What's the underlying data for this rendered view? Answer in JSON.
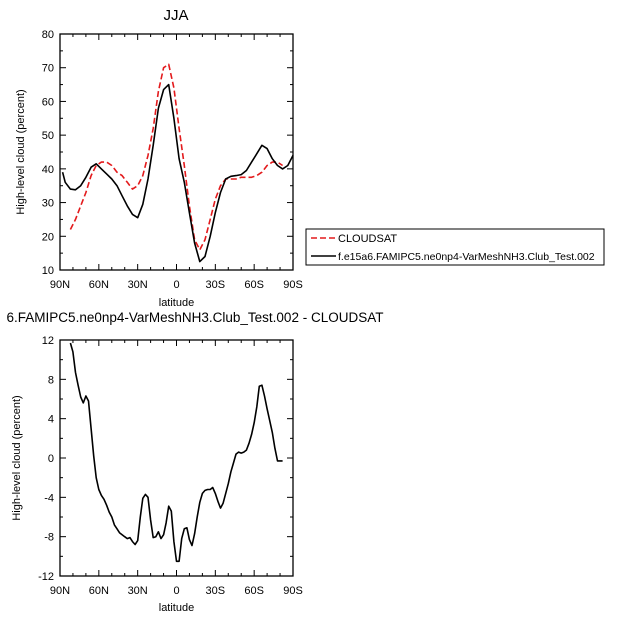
{
  "chart_data": [
    {
      "type": "line",
      "title": "JJA",
      "xlabel": "latitude",
      "ylabel": "High-level cloud (percent)",
      "x_direction": "90N to 90S",
      "xlim": [
        90,
        -90
      ],
      "ylim": [
        10,
        80
      ],
      "xticks": [
        90,
        60,
        30,
        0,
        -30,
        -60,
        -90
      ],
      "xtick_labels": [
        "90N",
        "60N",
        "30N",
        "0",
        "30S",
        "60S",
        "90S"
      ],
      "yticks": [
        10,
        20,
        30,
        40,
        50,
        60,
        70,
        80
      ],
      "ytick_labels": [
        "10",
        "20",
        "30",
        "40",
        "50",
        "60",
        "70",
        "80"
      ],
      "grid": false,
      "legend_placement": "outside-right",
      "series": [
        {
          "name": "CLOUDSAT",
          "color": "#e31a1c",
          "dash": "dashed",
          "x": [
            82,
            78,
            74,
            70,
            66,
            62,
            58,
            54,
            50,
            46,
            42,
            38,
            34,
            30,
            26,
            22,
            18,
            14,
            10,
            6,
            2,
            -2,
            -6,
            -10,
            -14,
            -18,
            -22,
            -26,
            -30,
            -34,
            -38,
            -42,
            -46,
            -50,
            -54,
            -58,
            -62,
            -66,
            -70,
            -74,
            -78,
            -82
          ],
          "y": [
            22,
            25,
            29,
            33,
            38,
            41,
            42,
            42,
            41,
            39,
            38,
            36,
            34,
            35,
            38,
            44,
            52,
            63,
            70,
            71,
            64,
            52,
            41,
            29,
            19,
            16,
            19,
            25,
            31,
            35,
            37,
            37,
            37,
            37.5,
            37.5,
            37.5,
            38,
            39,
            41,
            42,
            42,
            41
          ]
        },
        {
          "name": "f.e15a6.FAMIPC5.ne0np4-VarMeshNH3.Club_Test.002",
          "color": "#000000",
          "dash": "solid",
          "x": [
            88,
            86,
            82,
            78,
            74,
            70,
            66,
            62,
            58,
            54,
            50,
            46,
            42,
            38,
            34,
            30,
            26,
            22,
            18,
            14,
            10,
            6,
            2,
            -2,
            -6,
            -10,
            -14,
            -18,
            -22,
            -26,
            -30,
            -34,
            -38,
            -42,
            -46,
            -50,
            -54,
            -58,
            -62,
            -66,
            -70,
            -74,
            -78,
            -82,
            -86,
            -90
          ],
          "y": [
            39,
            36,
            34,
            33.8,
            35,
            37.5,
            40.5,
            41.5,
            40,
            38.5,
            37,
            35,
            32,
            29,
            26.5,
            25.5,
            29.5,
            37,
            47,
            58,
            63.5,
            65,
            55,
            43,
            36,
            27,
            18,
            12.5,
            14,
            20,
            27,
            33,
            37,
            37.8,
            38,
            38.3,
            39.5,
            42,
            44.5,
            47,
            46,
            43,
            41,
            40,
            41,
            44
          ]
        }
      ]
    },
    {
      "type": "line",
      "title": "6.FAMIPC5.ne0np4-VarMeshNH3.Club_Test.002 - CLOUDSAT",
      "xlabel": "latitude",
      "ylabel": "High-level cloud (percent)",
      "x_direction": "90N to 90S",
      "xlim": [
        90,
        -90
      ],
      "ylim": [
        -12,
        12
      ],
      "xticks": [
        90,
        60,
        30,
        0,
        -30,
        -60,
        -90
      ],
      "xtick_labels": [
        "90N",
        "60N",
        "30N",
        "0",
        "30S",
        "60S",
        "90S"
      ],
      "yticks": [
        -12,
        -8,
        -4,
        0,
        4,
        8,
        12
      ],
      "ytick_labels": [
        "-12",
        "-8",
        "-4",
        "0",
        "4",
        "8",
        "12"
      ],
      "grid": false,
      "series": [
        {
          "color": "#000000",
          "dash": "solid",
          "x": [
            82,
            80,
            78,
            76,
            74,
            72,
            70,
            68,
            66,
            64,
            62,
            60,
            58,
            56,
            54,
            52,
            50,
            48,
            46,
            44,
            42,
            40,
            38,
            36,
            34,
            32,
            30,
            28,
            26,
            24,
            22,
            20,
            18,
            16,
            14,
            12,
            10,
            8,
            6,
            4,
            2,
            0,
            -2,
            -4,
            -6,
            -8,
            -10,
            -12,
            -14,
            -16,
            -18,
            -20,
            -22,
            -24,
            -26,
            -28,
            -30,
            -32,
            -34,
            -36,
            -38,
            -40,
            -42,
            -44,
            -46,
            -48,
            -50,
            -52,
            -54,
            -56,
            -58,
            -60,
            -62,
            -64,
            -66,
            -68,
            -70,
            -72,
            -74,
            -76,
            -78,
            -80,
            -82
          ],
          "y": [
            11.7,
            10.8,
            8.7,
            7.4,
            6.2,
            5.6,
            6.3,
            5.8,
            3.0,
            0.2,
            -2.0,
            -3.2,
            -3.8,
            -4.2,
            -4.8,
            -5.5,
            -6.0,
            -6.8,
            -7.2,
            -7.6,
            -7.8,
            -8.0,
            -8.2,
            -8.1,
            -8.5,
            -8.8,
            -8.4,
            -6.0,
            -4.1,
            -3.7,
            -4.0,
            -6.3,
            -8.1,
            -8.0,
            -7.5,
            -8.2,
            -7.8,
            -6.6,
            -4.9,
            -5.4,
            -8.5,
            -10.5,
            -10.5,
            -8.2,
            -7.2,
            -7.1,
            -8.3,
            -8.9,
            -7.7,
            -6.0,
            -4.5,
            -3.6,
            -3.3,
            -3.2,
            -3.2,
            -3.0,
            -3.6,
            -4.4,
            -5.1,
            -4.6,
            -3.6,
            -2.6,
            -1.4,
            -0.5,
            0.4,
            0.6,
            0.5,
            0.6,
            0.8,
            1.5,
            2.4,
            3.6,
            5.2,
            7.3,
            7.4,
            6.3,
            5.0,
            3.8,
            2.6,
            1.0,
            -0.3,
            -0.3,
            -0.3
          ]
        }
      ]
    }
  ]
}
